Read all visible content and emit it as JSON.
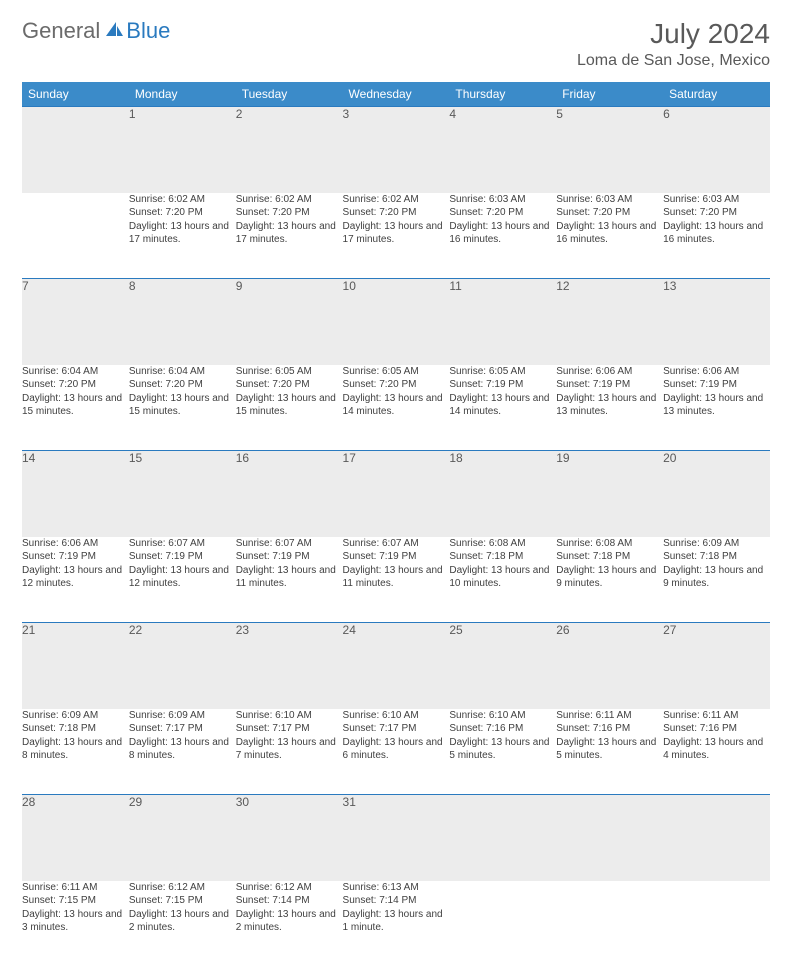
{
  "brand": {
    "part1": "General",
    "part2": "Blue"
  },
  "title": "July 2024",
  "location": "Loma de San Jose, Mexico",
  "colors": {
    "header_bg": "#3b8bc9",
    "accent": "#2a7abf",
    "daynum_bg": "#ececec",
    "text_muted": "#595959",
    "text_body": "#404040"
  },
  "day_headers": [
    "Sunday",
    "Monday",
    "Tuesday",
    "Wednesday",
    "Thursday",
    "Friday",
    "Saturday"
  ],
  "weeks": [
    [
      {
        "n": "",
        "sr": "",
        "ss": "",
        "dl": ""
      },
      {
        "n": "1",
        "sr": "Sunrise: 6:02 AM",
        "ss": "Sunset: 7:20 PM",
        "dl": "Daylight: 13 hours and 17 minutes."
      },
      {
        "n": "2",
        "sr": "Sunrise: 6:02 AM",
        "ss": "Sunset: 7:20 PM",
        "dl": "Daylight: 13 hours and 17 minutes."
      },
      {
        "n": "3",
        "sr": "Sunrise: 6:02 AM",
        "ss": "Sunset: 7:20 PM",
        "dl": "Daylight: 13 hours and 17 minutes."
      },
      {
        "n": "4",
        "sr": "Sunrise: 6:03 AM",
        "ss": "Sunset: 7:20 PM",
        "dl": "Daylight: 13 hours and 16 minutes."
      },
      {
        "n": "5",
        "sr": "Sunrise: 6:03 AM",
        "ss": "Sunset: 7:20 PM",
        "dl": "Daylight: 13 hours and 16 minutes."
      },
      {
        "n": "6",
        "sr": "Sunrise: 6:03 AM",
        "ss": "Sunset: 7:20 PM",
        "dl": "Daylight: 13 hours and 16 minutes."
      }
    ],
    [
      {
        "n": "7",
        "sr": "Sunrise: 6:04 AM",
        "ss": "Sunset: 7:20 PM",
        "dl": "Daylight: 13 hours and 15 minutes."
      },
      {
        "n": "8",
        "sr": "Sunrise: 6:04 AM",
        "ss": "Sunset: 7:20 PM",
        "dl": "Daylight: 13 hours and 15 minutes."
      },
      {
        "n": "9",
        "sr": "Sunrise: 6:05 AM",
        "ss": "Sunset: 7:20 PM",
        "dl": "Daylight: 13 hours and 15 minutes."
      },
      {
        "n": "10",
        "sr": "Sunrise: 6:05 AM",
        "ss": "Sunset: 7:20 PM",
        "dl": "Daylight: 13 hours and 14 minutes."
      },
      {
        "n": "11",
        "sr": "Sunrise: 6:05 AM",
        "ss": "Sunset: 7:19 PM",
        "dl": "Daylight: 13 hours and 14 minutes."
      },
      {
        "n": "12",
        "sr": "Sunrise: 6:06 AM",
        "ss": "Sunset: 7:19 PM",
        "dl": "Daylight: 13 hours and 13 minutes."
      },
      {
        "n": "13",
        "sr": "Sunrise: 6:06 AM",
        "ss": "Sunset: 7:19 PM",
        "dl": "Daylight: 13 hours and 13 minutes."
      }
    ],
    [
      {
        "n": "14",
        "sr": "Sunrise: 6:06 AM",
        "ss": "Sunset: 7:19 PM",
        "dl": "Daylight: 13 hours and 12 minutes."
      },
      {
        "n": "15",
        "sr": "Sunrise: 6:07 AM",
        "ss": "Sunset: 7:19 PM",
        "dl": "Daylight: 13 hours and 12 minutes."
      },
      {
        "n": "16",
        "sr": "Sunrise: 6:07 AM",
        "ss": "Sunset: 7:19 PM",
        "dl": "Daylight: 13 hours and 11 minutes."
      },
      {
        "n": "17",
        "sr": "Sunrise: 6:07 AM",
        "ss": "Sunset: 7:19 PM",
        "dl": "Daylight: 13 hours and 11 minutes."
      },
      {
        "n": "18",
        "sr": "Sunrise: 6:08 AM",
        "ss": "Sunset: 7:18 PM",
        "dl": "Daylight: 13 hours and 10 minutes."
      },
      {
        "n": "19",
        "sr": "Sunrise: 6:08 AM",
        "ss": "Sunset: 7:18 PM",
        "dl": "Daylight: 13 hours and 9 minutes."
      },
      {
        "n": "20",
        "sr": "Sunrise: 6:09 AM",
        "ss": "Sunset: 7:18 PM",
        "dl": "Daylight: 13 hours and 9 minutes."
      }
    ],
    [
      {
        "n": "21",
        "sr": "Sunrise: 6:09 AM",
        "ss": "Sunset: 7:18 PM",
        "dl": "Daylight: 13 hours and 8 minutes."
      },
      {
        "n": "22",
        "sr": "Sunrise: 6:09 AM",
        "ss": "Sunset: 7:17 PM",
        "dl": "Daylight: 13 hours and 8 minutes."
      },
      {
        "n": "23",
        "sr": "Sunrise: 6:10 AM",
        "ss": "Sunset: 7:17 PM",
        "dl": "Daylight: 13 hours and 7 minutes."
      },
      {
        "n": "24",
        "sr": "Sunrise: 6:10 AM",
        "ss": "Sunset: 7:17 PM",
        "dl": "Daylight: 13 hours and 6 minutes."
      },
      {
        "n": "25",
        "sr": "Sunrise: 6:10 AM",
        "ss": "Sunset: 7:16 PM",
        "dl": "Daylight: 13 hours and 5 minutes."
      },
      {
        "n": "26",
        "sr": "Sunrise: 6:11 AM",
        "ss": "Sunset: 7:16 PM",
        "dl": "Daylight: 13 hours and 5 minutes."
      },
      {
        "n": "27",
        "sr": "Sunrise: 6:11 AM",
        "ss": "Sunset: 7:16 PM",
        "dl": "Daylight: 13 hours and 4 minutes."
      }
    ],
    [
      {
        "n": "28",
        "sr": "Sunrise: 6:11 AM",
        "ss": "Sunset: 7:15 PM",
        "dl": "Daylight: 13 hours and 3 minutes."
      },
      {
        "n": "29",
        "sr": "Sunrise: 6:12 AM",
        "ss": "Sunset: 7:15 PM",
        "dl": "Daylight: 13 hours and 2 minutes."
      },
      {
        "n": "30",
        "sr": "Sunrise: 6:12 AM",
        "ss": "Sunset: 7:14 PM",
        "dl": "Daylight: 13 hours and 2 minutes."
      },
      {
        "n": "31",
        "sr": "Sunrise: 6:13 AM",
        "ss": "Sunset: 7:14 PM",
        "dl": "Daylight: 13 hours and 1 minute."
      },
      {
        "n": "",
        "sr": "",
        "ss": "",
        "dl": ""
      },
      {
        "n": "",
        "sr": "",
        "ss": "",
        "dl": ""
      },
      {
        "n": "",
        "sr": "",
        "ss": "",
        "dl": ""
      }
    ]
  ]
}
